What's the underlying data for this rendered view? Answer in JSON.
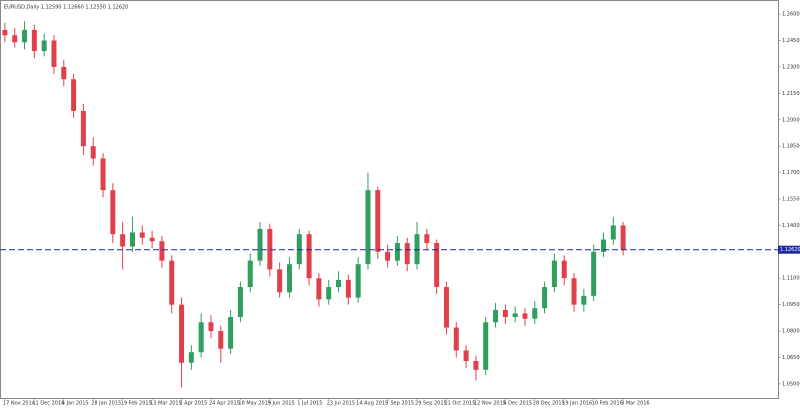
{
  "chart_data": {
    "type": "candlestick",
    "title": "EURUSD,Daily 1.12590 1.12660 1.12550 1.12620",
    "categories": [
      "17 Nov 2014",
      null,
      null,
      "11 Dec 2014",
      null,
      null,
      "5 Jan 2015",
      null,
      null,
      "28 Jan 2015",
      null,
      null,
      "19 Feb 2015",
      null,
      null,
      "13 Mar 2015",
      null,
      null,
      "2 Apr 2015",
      null,
      null,
      "24 Apr 2015",
      null,
      null,
      "18 May 2015",
      null,
      null,
      "9 Jun 2015",
      null,
      null,
      "1 Jul 2015",
      null,
      null,
      "23 Jul 2015",
      null,
      null,
      "14 Aug 2015",
      null,
      null,
      "7 Sep 2015",
      null,
      null,
      "29 Sep 2015",
      null,
      null,
      "21 Oct 2015",
      null,
      null,
      "12 Nov 2015",
      null,
      null,
      "4 Dec 2015",
      null,
      null,
      "28 Dec 2015",
      null,
      null,
      "19 Jan 2016",
      null,
      null,
      "10 Feb 2016",
      null,
      null,
      "3 Mar 2016"
    ],
    "open": [
      1.251,
      1.248,
      1.244,
      1.251,
      1.239,
      1.245,
      1.23,
      1.223,
      1.205,
      1.185,
      1.178,
      1.16,
      1.135,
      1.128,
      1.136,
      1.133,
      1.131,
      1.12,
      1.095,
      1.062,
      1.068,
      1.085,
      1.08,
      1.07,
      1.088,
      1.105,
      1.12,
      1.138,
      1.115,
      1.102,
      1.118,
      1.135,
      1.11,
      1.098,
      1.105,
      1.109,
      1.099,
      1.118,
      1.16,
      1.125,
      1.12,
      1.13,
      1.118,
      1.135,
      1.13,
      1.105,
      1.082,
      1.069,
      1.063,
      1.058,
      1.085,
      1.092,
      1.088,
      1.09,
      1.087,
      1.093,
      1.105,
      1.12,
      1.11,
      1.095,
      1.1,
      1.125,
      1.132,
      1.14
    ],
    "high": [
      1.255,
      1.252,
      1.256,
      1.254,
      1.249,
      1.248,
      1.234,
      1.226,
      1.209,
      1.19,
      1.181,
      1.164,
      1.142,
      1.145,
      1.14,
      1.137,
      1.134,
      1.123,
      1.099,
      1.072,
      1.09,
      1.089,
      1.083,
      1.092,
      1.108,
      1.124,
      1.142,
      1.141,
      1.119,
      1.122,
      1.138,
      1.137,
      1.113,
      1.109,
      1.114,
      1.112,
      1.122,
      1.17,
      1.162,
      1.129,
      1.134,
      1.133,
      1.142,
      1.138,
      1.132,
      1.108,
      1.085,
      1.072,
      1.066,
      1.088,
      1.096,
      1.095,
      1.094,
      1.093,
      1.097,
      1.108,
      1.124,
      1.123,
      1.113,
      1.104,
      1.129,
      1.136,
      1.145,
      1.142
    ],
    "low": [
      1.244,
      1.241,
      1.24,
      1.235,
      1.236,
      1.226,
      1.219,
      1.201,
      1.18,
      1.174,
      1.156,
      1.13,
      1.115,
      1.125,
      1.129,
      1.127,
      1.116,
      1.09,
      1.048,
      1.058,
      1.065,
      1.076,
      1.062,
      1.067,
      1.085,
      1.102,
      1.117,
      1.111,
      1.099,
      1.099,
      1.115,
      1.106,
      1.094,
      1.095,
      1.102,
      1.095,
      1.096,
      1.115,
      1.121,
      1.116,
      1.117,
      1.114,
      1.115,
      1.126,
      1.101,
      1.078,
      1.065,
      1.059,
      1.052,
      1.055,
      1.082,
      1.084,
      1.085,
      1.083,
      1.084,
      1.09,
      1.102,
      1.106,
      1.091,
      1.091,
      1.097,
      1.122,
      1.129,
      1.123
    ],
    "close": [
      1.248,
      1.244,
      1.251,
      1.239,
      1.245,
      1.23,
      1.223,
      1.205,
      1.185,
      1.178,
      1.16,
      1.135,
      1.128,
      1.136,
      1.133,
      1.131,
      1.12,
      1.095,
      1.062,
      1.068,
      1.085,
      1.08,
      1.07,
      1.088,
      1.105,
      1.12,
      1.138,
      1.115,
      1.102,
      1.118,
      1.135,
      1.11,
      1.098,
      1.105,
      1.109,
      1.099,
      1.118,
      1.16,
      1.125,
      1.12,
      1.13,
      1.118,
      1.135,
      1.13,
      1.105,
      1.082,
      1.069,
      1.063,
      1.058,
      1.085,
      1.092,
      1.088,
      1.09,
      1.087,
      1.093,
      1.105,
      1.12,
      1.11,
      1.095,
      1.1,
      1.125,
      1.132,
      1.14,
      1.1262
    ],
    "up_color": "#2f9e5f",
    "down_color": "#e0404a",
    "ylim": [
      1.042,
      1.268
    ],
    "yticks": [
      {
        "value": 1.05,
        "label": "1.05000"
      },
      {
        "value": 1.065,
        "label": "1.06500"
      },
      {
        "value": 1.08,
        "label": "1.08000"
      },
      {
        "value": 1.095,
        "label": "1.09500"
      },
      {
        "value": 1.11,
        "label": "1.11000"
      },
      {
        "value": 1.125,
        "label": "1.12500"
      },
      {
        "value": 1.14,
        "label": "1.14000"
      },
      {
        "value": 1.155,
        "label": "1.15500"
      },
      {
        "value": 1.17,
        "label": "1.17000"
      },
      {
        "value": 1.185,
        "label": "1.18500"
      },
      {
        "value": 1.2,
        "label": "1.20000"
      },
      {
        "value": 1.215,
        "label": "1.21500"
      },
      {
        "value": 1.23,
        "label": "1.23000"
      },
      {
        "value": 1.245,
        "label": "1.24500"
      },
      {
        "value": 1.26,
        "label": "1.26000"
      }
    ],
    "last_price": {
      "value": 1.1262,
      "label": "1.12620"
    },
    "last_price_color": "#1f2a9e"
  }
}
